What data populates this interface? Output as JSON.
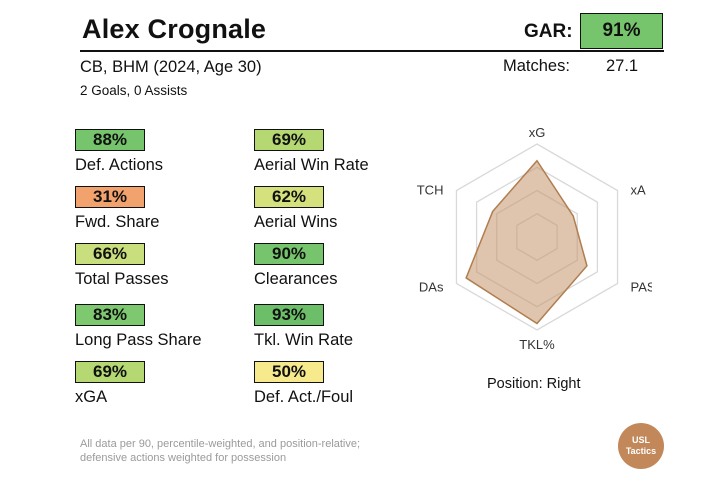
{
  "player": {
    "name": "Alex Crognale",
    "subtitle": "CB, BHM (2024, Age 30)",
    "goals_assists": "2 Goals,  0 Assists"
  },
  "gar": {
    "label": "GAR:",
    "value": "91%"
  },
  "matches": {
    "label": "Matches:",
    "value": "27.1"
  },
  "metrics_left": [
    {
      "value": "88%",
      "label": "Def. Actions",
      "color": "#76c56d"
    },
    {
      "value": "31%",
      "label": "Fwd. Share",
      "color": "#f2a26d"
    },
    {
      "value": "66%",
      "label": "Total Passes",
      "color": "#c9de7d"
    },
    {
      "value": "83%",
      "label": "Long Pass Share",
      "color": "#7ec870"
    },
    {
      "value": "69%",
      "label": "xGA",
      "color": "#b6d873"
    }
  ],
  "metrics_right": [
    {
      "value": "69%",
      "label": "Aerial Win Rate",
      "color": "#b6d873"
    },
    {
      "value": "62%",
      "label": "Aerial Wins",
      "color": "#d4e17d"
    },
    {
      "value": "90%",
      "label": "Clearances",
      "color": "#76c56d"
    },
    {
      "value": "93%",
      "label": "Tkl. Win Rate",
      "color": "#6cbf68"
    },
    {
      "value": "50%",
      "label": "Def. Act./Foul",
      "color": "#f7ea8c"
    }
  ],
  "radar": {
    "axes": [
      "xG",
      "xA",
      "PAS",
      "TKL%",
      "DAs",
      "TCH"
    ],
    "values": [
      0.82,
      0.45,
      0.62,
      0.93,
      0.88,
      0.55
    ],
    "fill_color": "#c4956c",
    "stroke_color": "#b07d4f"
  },
  "position": "Position: Right",
  "footnote": {
    "line1": "All data per 90, percentile-weighted, and position-relative;",
    "line2": "defensive actions weighted for possession"
  },
  "logo": {
    "line1": "USL",
    "line2": "Tactics"
  }
}
